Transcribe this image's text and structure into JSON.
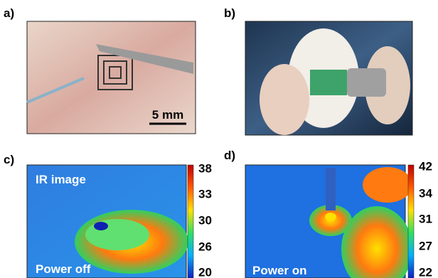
{
  "panels": [
    {
      "label": "a)",
      "scale_bar": "5 mm"
    },
    {
      "label": "b)"
    },
    {
      "label": "c)",
      "caption_top": "IR image",
      "caption_bottom": "Power off",
      "colorbar_ticks": [
        38,
        33,
        30,
        26,
        20
      ]
    },
    {
      "label": "d)",
      "caption_bottom": "Power on",
      "colorbar_ticks": [
        42,
        34,
        31,
        27,
        22
      ]
    }
  ]
}
